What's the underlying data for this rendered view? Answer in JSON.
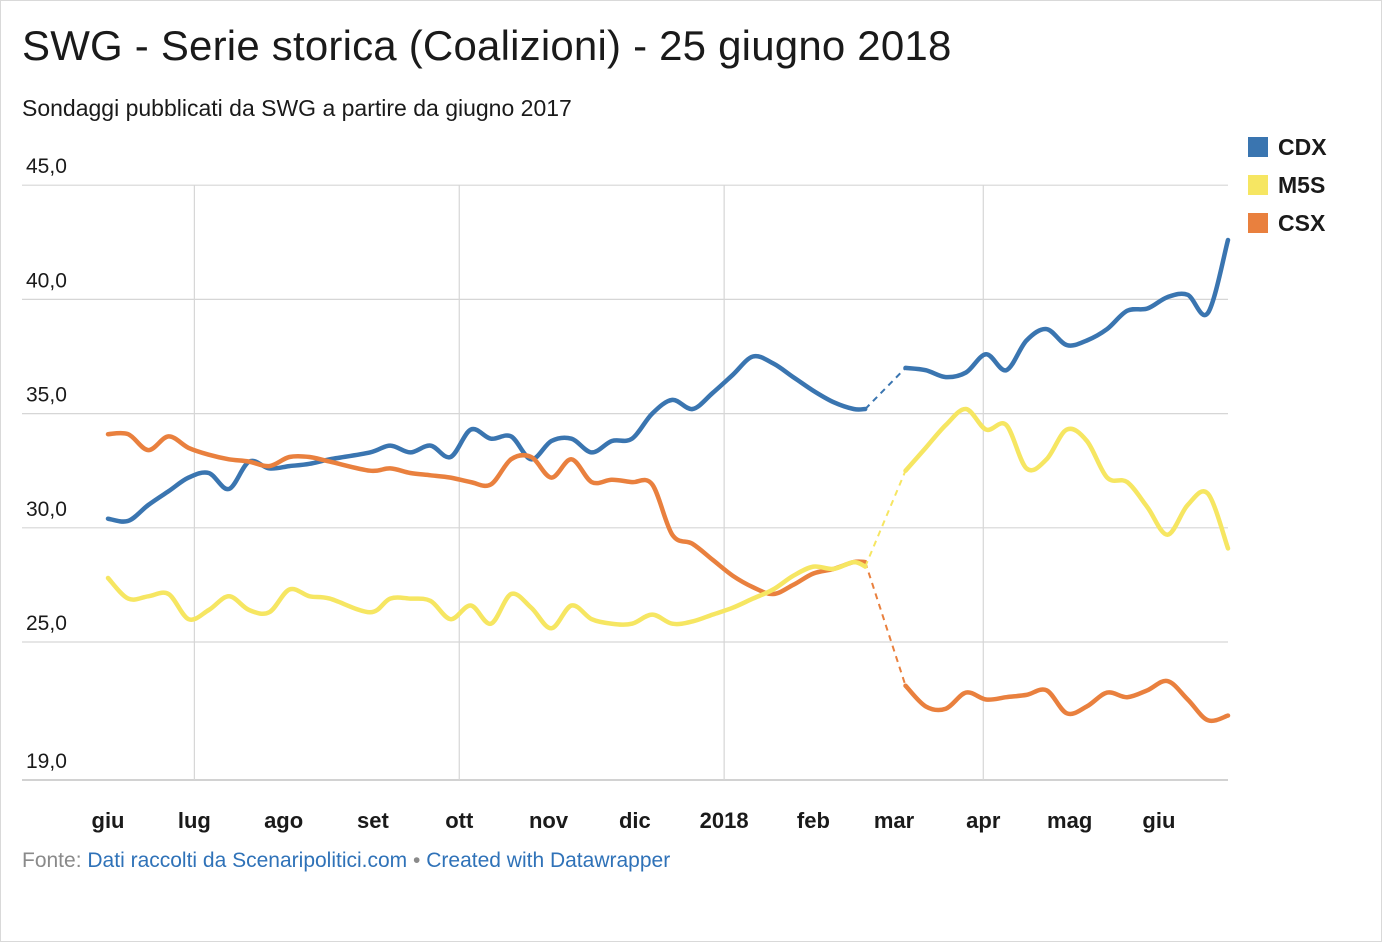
{
  "title": "SWG - Serie storica (Coalizioni) - 25 giugno 2018",
  "subtitle": "Sondaggi pubblicati da SWG a partire da giugno 2017",
  "footer": {
    "prefix": "Fonte:",
    "source_link": "Dati raccolti da Scenaripolitici.com",
    "separator": "•",
    "credit_link": "Created with Datawrapper"
  },
  "chart_data": {
    "type": "line",
    "title": "SWG - Serie storica (Coalizioni) - 25 giugno 2018",
    "subtitle": "Sondaggi pubblicati da SWG a partire da giugno 2017",
    "y_axis": {
      "ylim": [
        19.0,
        45.0
      ],
      "ticks": [
        19.0,
        25.0,
        30.0,
        35.0,
        40.0,
        45.0
      ],
      "tick_labels": [
        "19,0",
        "25,0",
        "30,0",
        "35,0",
        "40,0",
        "45,0"
      ]
    },
    "x_axis": {
      "tick_labels": [
        "giu",
        "lug",
        "ago",
        "set",
        "ott",
        "nov",
        "dic",
        "2018",
        "feb",
        "mar",
        "apr",
        "mag",
        "giu"
      ],
      "tick_dates": [
        "2017-06-01",
        "2017-07-01",
        "2017-08-01",
        "2017-09-01",
        "2017-10-01",
        "2017-11-01",
        "2017-12-01",
        "2018-01-01",
        "2018-02-01",
        "2018-03-01",
        "2018-04-01",
        "2018-05-01",
        "2018-06-01"
      ],
      "vertical_grid_dates": [
        "2017-07-01",
        "2017-10-01",
        "2018-01-01",
        "2018-04-01"
      ]
    },
    "gap": {
      "from": "2018-02-19",
      "to": "2018-03-05",
      "style": "dashed"
    },
    "grid": true,
    "legend_position": "top-right",
    "series": [
      {
        "name": "CDX",
        "color": "#3a75b0",
        "x": [
          "2017-06-01",
          "2017-06-08",
          "2017-06-15",
          "2017-06-22",
          "2017-06-29",
          "2017-07-06",
          "2017-07-13",
          "2017-07-20",
          "2017-07-27",
          "2017-08-03",
          "2017-08-10",
          "2017-08-17",
          "2017-08-31",
          "2017-09-07",
          "2017-09-14",
          "2017-09-21",
          "2017-09-28",
          "2017-10-05",
          "2017-10-12",
          "2017-10-19",
          "2017-10-26",
          "2017-11-02",
          "2017-11-09",
          "2017-11-16",
          "2017-11-23",
          "2017-11-30",
          "2017-12-07",
          "2017-12-14",
          "2017-12-21",
          "2017-12-28",
          "2018-01-04",
          "2018-01-11",
          "2018-01-18",
          "2018-01-25",
          "2018-02-01",
          "2018-02-08",
          "2018-02-15",
          "2018-02-19",
          "2018-03-05",
          "2018-03-12",
          "2018-03-19",
          "2018-03-26",
          "2018-04-02",
          "2018-04-09",
          "2018-04-16",
          "2018-04-23",
          "2018-04-30",
          "2018-05-07",
          "2018-05-14",
          "2018-05-21",
          "2018-05-28",
          "2018-06-04",
          "2018-06-11",
          "2018-06-18",
          "2018-06-25"
        ],
        "values": [
          30.4,
          30.3,
          31.0,
          31.6,
          32.2,
          32.4,
          31.7,
          32.9,
          32.6,
          32.7,
          32.8,
          33.0,
          33.3,
          33.6,
          33.3,
          33.6,
          33.1,
          34.3,
          33.9,
          34.0,
          33.0,
          33.8,
          33.9,
          33.3,
          33.8,
          33.9,
          35.0,
          35.6,
          35.2,
          35.9,
          36.7,
          37.5,
          37.2,
          36.6,
          36.0,
          35.5,
          35.2,
          35.2,
          37.0,
          36.9,
          36.6,
          36.8,
          37.6,
          36.9,
          38.2,
          38.7,
          38.0,
          38.2,
          38.7,
          39.5,
          39.6,
          40.1,
          40.2,
          39.4,
          42.6
        ]
      },
      {
        "name": "M5S",
        "color": "#f6e662",
        "x": [
          "2017-06-01",
          "2017-06-08",
          "2017-06-15",
          "2017-06-22",
          "2017-06-29",
          "2017-07-06",
          "2017-07-13",
          "2017-07-20",
          "2017-07-27",
          "2017-08-03",
          "2017-08-10",
          "2017-08-17",
          "2017-08-31",
          "2017-09-07",
          "2017-09-14",
          "2017-09-21",
          "2017-09-28",
          "2017-10-05",
          "2017-10-12",
          "2017-10-19",
          "2017-10-26",
          "2017-11-02",
          "2017-11-09",
          "2017-11-16",
          "2017-11-23",
          "2017-11-30",
          "2017-12-07",
          "2017-12-14",
          "2017-12-21",
          "2017-12-28",
          "2018-01-04",
          "2018-01-11",
          "2018-01-18",
          "2018-01-25",
          "2018-02-01",
          "2018-02-08",
          "2018-02-15",
          "2018-02-19",
          "2018-03-05",
          "2018-03-12",
          "2018-03-19",
          "2018-03-26",
          "2018-04-02",
          "2018-04-09",
          "2018-04-16",
          "2018-04-23",
          "2018-04-30",
          "2018-05-07",
          "2018-05-14",
          "2018-05-21",
          "2018-05-28",
          "2018-06-04",
          "2018-06-11",
          "2018-06-18",
          "2018-06-25"
        ],
        "values": [
          27.8,
          26.9,
          27.0,
          27.1,
          26.0,
          26.4,
          27.0,
          26.4,
          26.3,
          27.3,
          27.0,
          26.9,
          26.3,
          26.9,
          26.9,
          26.8,
          26.0,
          26.6,
          25.8,
          27.1,
          26.5,
          25.6,
          26.6,
          26.0,
          25.8,
          25.8,
          26.2,
          25.8,
          25.9,
          26.2,
          26.5,
          26.9,
          27.3,
          27.9,
          28.3,
          28.2,
          28.5,
          28.3,
          32.5,
          33.5,
          34.5,
          35.2,
          34.3,
          34.5,
          32.6,
          33.0,
          34.3,
          33.8,
          32.2,
          32.0,
          30.9,
          29.7,
          31.0,
          31.5,
          29.1
        ]
      },
      {
        "name": "CSX",
        "color": "#e9803e",
        "x": [
          "2017-06-01",
          "2017-06-08",
          "2017-06-15",
          "2017-06-22",
          "2017-06-29",
          "2017-07-06",
          "2017-07-13",
          "2017-07-20",
          "2017-07-27",
          "2017-08-03",
          "2017-08-10",
          "2017-08-17",
          "2017-08-31",
          "2017-09-07",
          "2017-09-14",
          "2017-09-21",
          "2017-09-28",
          "2017-10-05",
          "2017-10-12",
          "2017-10-19",
          "2017-10-26",
          "2017-11-02",
          "2017-11-09",
          "2017-11-16",
          "2017-11-23",
          "2017-11-30",
          "2017-12-07",
          "2017-12-14",
          "2017-12-21",
          "2017-12-28",
          "2018-01-04",
          "2018-01-11",
          "2018-01-18",
          "2018-01-25",
          "2018-02-01",
          "2018-02-08",
          "2018-02-15",
          "2018-02-19",
          "2018-03-05",
          "2018-03-12",
          "2018-03-19",
          "2018-03-26",
          "2018-04-02",
          "2018-04-09",
          "2018-04-16",
          "2018-04-23",
          "2018-04-30",
          "2018-05-07",
          "2018-05-14",
          "2018-05-21",
          "2018-05-28",
          "2018-06-04",
          "2018-06-11",
          "2018-06-18",
          "2018-06-25"
        ],
        "values": [
          34.1,
          34.1,
          33.4,
          34.0,
          33.5,
          33.2,
          33.0,
          32.9,
          32.7,
          33.1,
          33.1,
          32.9,
          32.5,
          32.6,
          32.4,
          32.3,
          32.2,
          32.0,
          31.9,
          33.0,
          33.1,
          32.2,
          33.0,
          32.0,
          32.1,
          32.0,
          31.9,
          29.7,
          29.3,
          28.6,
          27.9,
          27.4,
          27.1,
          27.5,
          28.0,
          28.2,
          28.5,
          28.5,
          23.1,
          22.2,
          22.1,
          22.8,
          22.5,
          22.6,
          22.7,
          22.9,
          21.9,
          22.2,
          22.8,
          22.6,
          22.9,
          23.3,
          22.5,
          21.6,
          21.8
        ]
      }
    ]
  }
}
